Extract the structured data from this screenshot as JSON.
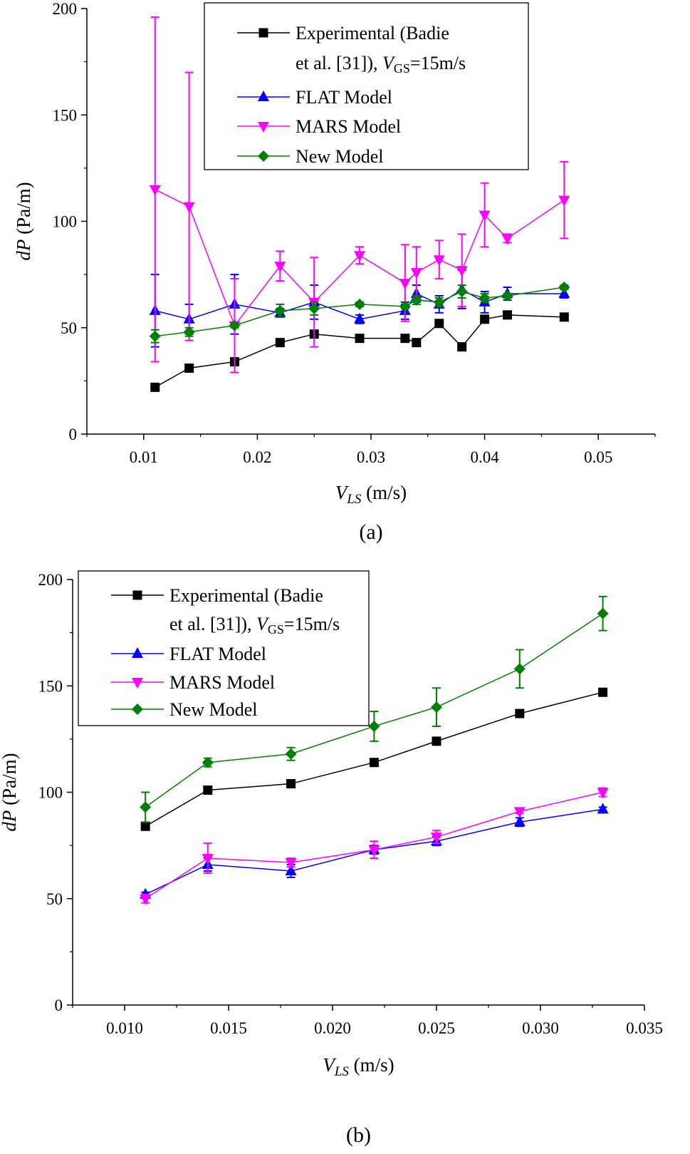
{
  "chart_data": [
    {
      "type": "line",
      "panel_label": "(a)",
      "xlabel": {
        "main": "V",
        "sub": "LS",
        "unit": " (m/s)"
      },
      "ylabel": {
        "main": "dP",
        "unit": " (Pa/m)"
      },
      "xlim": [
        0.005,
        0.055
      ],
      "ylim": [
        0,
        200
      ],
      "xticks": [
        0.01,
        0.02,
        0.03,
        0.04,
        0.05
      ],
      "xtick_labels": [
        "0.01",
        "0.02",
        "0.03",
        "0.04",
        "0.05"
      ],
      "yticks": [
        0,
        50,
        100,
        150,
        200
      ],
      "ytick_labels": [
        "0",
        "50",
        "100",
        "150",
        "200"
      ],
      "legend_position": "top-right",
      "grid": false,
      "series": [
        {
          "name": "Experimental (Badie et al. [31]), VGS=15m/s",
          "legend_lines": [
            "Experimental (Badie",
            "et al. [31]), "
          ],
          "legend_tail": {
            "main": "V",
            "sub": "GS",
            "rest": "=15m/s"
          },
          "color": "#000000",
          "marker": "square",
          "x": [
            0.011,
            0.014,
            0.018,
            0.022,
            0.025,
            0.029,
            0.033,
            0.034,
            0.036,
            0.038,
            0.04,
            0.042,
            0.047
          ],
          "y": [
            22,
            31,
            34,
            43,
            47,
            45,
            45,
            43,
            52,
            41,
            54,
            56,
            55
          ],
          "err": [
            0,
            0,
            0,
            0,
            0,
            0,
            0,
            0,
            0,
            0,
            0,
            0,
            0
          ]
        },
        {
          "name": "FLAT Model",
          "color": "#0000ff",
          "marker": "triangle-up",
          "x": [
            0.011,
            0.014,
            0.018,
            0.022,
            0.025,
            0.029,
            0.033,
            0.034,
            0.036,
            0.038,
            0.04,
            0.042,
            0.047
          ],
          "y": [
            58,
            54,
            61,
            57,
            62,
            54,
            58,
            66,
            61,
            68,
            62,
            66,
            66
          ],
          "err": [
            17,
            7,
            14,
            2,
            8,
            2,
            4,
            4,
            4,
            9,
            5,
            3,
            2
          ]
        },
        {
          "name": "MARS Model",
          "color": "#ff00ff",
          "marker": "triangle-down",
          "x": [
            0.011,
            0.014,
            0.018,
            0.022,
            0.025,
            0.029,
            0.033,
            0.034,
            0.036,
            0.038,
            0.04,
            0.042,
            0.047
          ],
          "y": [
            115,
            107,
            51,
            79,
            62,
            84,
            71,
            76,
            82,
            77,
            103,
            92,
            110
          ],
          "err": [
            81,
            63,
            22,
            7,
            21,
            4,
            18,
            12,
            9,
            17,
            15,
            2,
            18
          ]
        },
        {
          "name": "New Model",
          "color": "#008000",
          "marker": "diamond",
          "x": [
            0.011,
            0.014,
            0.018,
            0.022,
            0.025,
            0.029,
            0.033,
            0.034,
            0.036,
            0.038,
            0.04,
            0.042,
            0.047
          ],
          "y": [
            46,
            48,
            51,
            58,
            59,
            61,
            60,
            63,
            62,
            67,
            64,
            65,
            69
          ],
          "err": [
            3,
            2,
            1,
            3,
            3,
            1,
            1,
            2,
            2,
            3,
            2,
            1,
            1
          ]
        }
      ]
    },
    {
      "type": "line",
      "panel_label": "(b)",
      "xlabel": {
        "main": "V",
        "sub": "LS",
        "unit": " (m/s)"
      },
      "ylabel": {
        "main": "dP",
        "unit": " (Pa/m)"
      },
      "xlim": [
        0.0075,
        0.035
      ],
      "ylim": [
        0,
        200
      ],
      "xticks": [
        0.01,
        0.015,
        0.02,
        0.025,
        0.03,
        0.035
      ],
      "xtick_labels": [
        "0.010",
        "0.015",
        "0.020",
        "0.025",
        "0.030",
        "0.035"
      ],
      "yticks": [
        0,
        50,
        100,
        150,
        200
      ],
      "ytick_labels": [
        "0",
        "50",
        "100",
        "150",
        "200"
      ],
      "legend_position": "top-left",
      "grid": false,
      "series": [
        {
          "name": "Experimental (Badie et al. [31]), VGS=15m/s",
          "legend_lines": [
            "Experimental (Badie",
            "et al. [31]), "
          ],
          "legend_tail": {
            "main": "V",
            "sub": "GS",
            "rest": "=15m/s"
          },
          "color": "#000000",
          "marker": "square",
          "x": [
            0.011,
            0.014,
            0.018,
            0.022,
            0.025,
            0.029,
            0.033
          ],
          "y": [
            84,
            101,
            104,
            114,
            124,
            137,
            147
          ],
          "err": [
            0,
            0,
            0,
            0,
            0,
            0,
            0
          ]
        },
        {
          "name": "FLAT Model",
          "color": "#0000ff",
          "marker": "triangle-up",
          "x": [
            0.011,
            0.014,
            0.018,
            0.022,
            0.025,
            0.029,
            0.033
          ],
          "y": [
            52,
            66,
            63,
            73,
            77,
            86,
            92
          ],
          "err": [
            1,
            3,
            3,
            2,
            2,
            2,
            1
          ]
        },
        {
          "name": "MARS Model",
          "color": "#ff00ff",
          "marker": "triangle-down",
          "x": [
            0.011,
            0.014,
            0.018,
            0.022,
            0.025,
            0.029,
            0.033
          ],
          "y": [
            50,
            69,
            67,
            73,
            79,
            91,
            100
          ],
          "err": [
            2,
            7,
            2,
            4,
            3,
            1,
            2
          ]
        },
        {
          "name": "New Model",
          "color": "#008000",
          "marker": "diamond",
          "x": [
            0.011,
            0.014,
            0.018,
            0.022,
            0.025,
            0.029,
            0.033
          ],
          "y": [
            93,
            114,
            118,
            131,
            140,
            158,
            184
          ],
          "err": [
            7,
            2,
            3,
            7,
            9,
            9,
            8
          ]
        }
      ]
    }
  ]
}
